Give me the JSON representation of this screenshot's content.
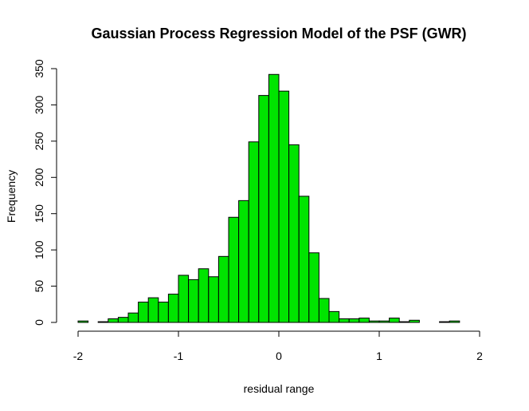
{
  "chart_data": {
    "type": "bar",
    "title": "Gaussian Process Regression Model of the PSF (GWR)",
    "xlabel": "residual range",
    "ylabel": "Frequency",
    "bin_width": 0.1,
    "bin_starts": [
      -2.0,
      -1.9,
      -1.8,
      -1.7,
      -1.6,
      -1.5,
      -1.4,
      -1.3,
      -1.2,
      -1.1,
      -1.0,
      -0.9,
      -0.8,
      -0.7,
      -0.6,
      -0.5,
      -0.4,
      -0.3,
      -0.2,
      -0.1,
      0.0,
      0.1,
      0.2,
      0.3,
      0.4,
      0.5,
      0.6,
      0.7,
      0.8,
      0.9,
      1.0,
      1.1,
      1.2,
      1.3,
      1.4,
      1.5,
      1.6,
      1.7
    ],
    "values": [
      2,
      0,
      1,
      5,
      7,
      13,
      28,
      34,
      28,
      39,
      65,
      59,
      74,
      63,
      91,
      145,
      168,
      249,
      313,
      342,
      319,
      245,
      174,
      96,
      33,
      15,
      5,
      5,
      6,
      2,
      2,
      6,
      1,
      3,
      0,
      0,
      1,
      2
    ],
    "xlim": [
      -2,
      2
    ],
    "ylim": [
      0,
      350
    ],
    "x_ticks": [
      -2,
      -1,
      0,
      1,
      2
    ],
    "x_tick_labels": [
      "-2",
      "-1",
      "0",
      "1",
      "2"
    ],
    "y_ticks": [
      0,
      50,
      100,
      150,
      200,
      250,
      300,
      350
    ],
    "y_tick_labels": [
      "0",
      "50",
      "100",
      "150",
      "200",
      "250",
      "300",
      "350"
    ],
    "bar_color": "#00e400",
    "grid": false
  }
}
